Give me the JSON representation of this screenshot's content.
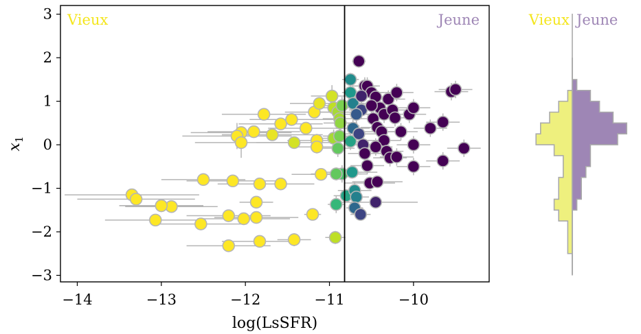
{
  "chart_data": [
    {
      "type": "scatter",
      "xlabel": "log(LsSFR)",
      "ylabel": "x",
      "ylabel_subscript": "1",
      "xlim": [
        -14.2,
        -9.1
      ],
      "ylim": [
        -3.15,
        3.2
      ],
      "xticks": [
        -14,
        -13,
        -12,
        -11,
        -10
      ],
      "xtick_labels": [
        "−14",
        "−13",
        "−12",
        "−11",
        "−10"
      ],
      "yticks": [
        -3,
        -2,
        -1,
        0,
        1,
        2,
        3
      ],
      "ytick_labels": [
        "−3",
        "−2",
        "−1",
        "0",
        "1",
        "2",
        "3"
      ],
      "grid": false,
      "split_line_x": -10.82,
      "colors": {
        "old": "#f4e61e",
        "young": "#9e86b5",
        "split_line": "#000000",
        "errorbar": "#b5b5b5",
        "marker_edge": "#b5b5b5"
      },
      "region_labels": {
        "left": "Vieux",
        "right": "Jeune"
      },
      "colormap": "viridis (yellow = old, purple = young)",
      "points": [
        {
          "x": -13.35,
          "y": -1.15,
          "xerr": 0.8,
          "yerr": 0.12,
          "c": 0.0
        },
        {
          "x": -13.3,
          "y": -1.25,
          "xerr": 0.7,
          "yerr": 0.12,
          "c": 0.0
        },
        {
          "x": -13.0,
          "y": -1.4,
          "xerr": 0.5,
          "yerr": 0.12,
          "c": 0.0
        },
        {
          "x": -12.88,
          "y": -1.42,
          "xerr": 0.55,
          "yerr": 0.12,
          "c": 0.0
        },
        {
          "x": -13.07,
          "y": -1.73,
          "xerr": 0.6,
          "yerr": 0.12,
          "c": 0.0
        },
        {
          "x": -12.53,
          "y": -1.82,
          "xerr": 0.55,
          "yerr": 0.12,
          "c": 0.0
        },
        {
          "x": -12.2,
          "y": -1.63,
          "xerr": 0.5,
          "yerr": 0.12,
          "c": 0.0
        },
        {
          "x": -12.02,
          "y": -1.7,
          "xerr": 0.55,
          "yerr": 0.12,
          "c": 0.0
        },
        {
          "x": -11.87,
          "y": -1.67,
          "xerr": 0.5,
          "yerr": 0.12,
          "c": 0.0
        },
        {
          "x": -12.2,
          "y": -2.32,
          "xerr": 0.5,
          "yerr": 0.12,
          "c": 0.0
        },
        {
          "x": -11.83,
          "y": -2.22,
          "xerr": 0.45,
          "yerr": 0.12,
          "c": 0.0
        },
        {
          "x": -11.42,
          "y": -2.18,
          "xerr": 0.2,
          "yerr": 0.15,
          "c": 0.0
        },
        {
          "x": -12.5,
          "y": -0.8,
          "xerr": 0.5,
          "yerr": 0.12,
          "c": 0.0
        },
        {
          "x": -12.15,
          "y": -0.83,
          "xerr": 0.55,
          "yerr": 0.12,
          "c": 0.0
        },
        {
          "x": -11.83,
          "y": -0.9,
          "xerr": 0.5,
          "yerr": 0.12,
          "c": 0.0
        },
        {
          "x": -11.58,
          "y": -0.9,
          "xerr": 0.4,
          "yerr": 0.12,
          "c": 0.0
        },
        {
          "x": -11.87,
          "y": -1.32,
          "xerr": 0.2,
          "yerr": 0.12,
          "c": 0.0
        },
        {
          "x": -11.2,
          "y": -1.6,
          "xerr": 0.1,
          "yerr": 0.12,
          "c": 0.0
        },
        {
          "x": -11.1,
          "y": -0.68,
          "xerr": 0.35,
          "yerr": 0.12,
          "c": 0.0
        },
        {
          "x": -10.93,
          "y": -2.13,
          "xerr": 0.12,
          "yerr": 0.15,
          "c": 0.15
        },
        {
          "x": -10.92,
          "y": -1.37,
          "xerr": 0.1,
          "yerr": 0.2,
          "c": 0.45
        },
        {
          "x": -10.8,
          "y": -1.17,
          "xerr": 0.15,
          "yerr": 0.15,
          "c": 0.55
        },
        {
          "x": -10.7,
          "y": -1.05,
          "xerr": 0.2,
          "yerr": 0.2,
          "c": 0.65
        },
        {
          "x": -10.68,
          "y": -1.2,
          "xerr": 0.15,
          "yerr": 0.15,
          "c": 0.7
        },
        {
          "x": -10.7,
          "y": -1.45,
          "xerr": 0.1,
          "yerr": 0.15,
          "c": 0.8
        },
        {
          "x": -10.63,
          "y": -1.6,
          "xerr": 0.12,
          "yerr": 0.12,
          "c": 0.9
        },
        {
          "x": -10.45,
          "y": -1.32,
          "xerr": 0.5,
          "yerr": 0.12,
          "c": 0.95
        },
        {
          "x": -10.85,
          "y": -0.67,
          "xerr": 0.3,
          "yerr": 0.2,
          "c": 0.4
        },
        {
          "x": -10.92,
          "y": -0.67,
          "xerr": 0.3,
          "yerr": 0.15,
          "c": 0.35
        },
        {
          "x": -10.73,
          "y": -0.63,
          "xerr": 0.3,
          "yerr": 0.15,
          "c": 0.6
        },
        {
          "x": -10.52,
          "y": -0.88,
          "xerr": 0.3,
          "yerr": 0.15,
          "c": 1.0
        },
        {
          "x": -10.43,
          "y": -0.85,
          "xerr": 0.3,
          "yerr": 0.12,
          "c": 1.0
        },
        {
          "x": -13.0,
          "y": -1.4,
          "xerr": 0.5,
          "yerr": 0.12,
          "c": 0.0
        },
        {
          "x": -11.78,
          "y": 0.7,
          "xerr": 0.5,
          "yerr": 0.12,
          "c": 0.0
        },
        {
          "x": -11.58,
          "y": 0.48,
          "xerr": 0.5,
          "yerr": 0.12,
          "c": 0.0
        },
        {
          "x": -11.45,
          "y": 0.58,
          "xerr": 0.5,
          "yerr": 0.12,
          "c": 0.0
        },
        {
          "x": -11.9,
          "y": 0.3,
          "xerr": 0.55,
          "yerr": 0.12,
          "c": 0.0
        },
        {
          "x": -12.05,
          "y": 0.28,
          "xerr": 0.6,
          "yerr": 0.12,
          "c": 0.0
        },
        {
          "x": -12.1,
          "y": 0.2,
          "xerr": 0.65,
          "yerr": 0.3,
          "c": 0.0
        },
        {
          "x": -12.05,
          "y": 0.05,
          "xerr": 0.55,
          "yerr": 0.35,
          "c": 0.0
        },
        {
          "x": -11.68,
          "y": 0.23,
          "xerr": 0.6,
          "yerr": 0.12,
          "c": 0.05
        },
        {
          "x": -11.42,
          "y": 0.05,
          "xerr": 0.45,
          "yerr": 0.12,
          "c": 0.1
        },
        {
          "x": -11.28,
          "y": 0.38,
          "xerr": 0.45,
          "yerr": 0.12,
          "c": 0.0
        },
        {
          "x": -11.18,
          "y": 0.75,
          "xerr": 0.35,
          "yerr": 0.12,
          "c": 0.0
        },
        {
          "x": -11.12,
          "y": 0.95,
          "xerr": 0.35,
          "yerr": 0.12,
          "c": 0.05
        },
        {
          "x": -11.15,
          "y": 0.1,
          "xerr": 0.35,
          "yerr": 0.15,
          "c": 0.0
        },
        {
          "x": -11.15,
          "y": -0.05,
          "xerr": 0.3,
          "yerr": 0.15,
          "c": 0.0
        },
        {
          "x": -10.97,
          "y": 1.12,
          "xerr": 0.25,
          "yerr": 0.25,
          "c": 0.1
        },
        {
          "x": -10.95,
          "y": 0.85,
          "xerr": 0.25,
          "yerr": 0.2,
          "c": 0.15
        },
        {
          "x": -10.9,
          "y": 0.75,
          "xerr": 0.25,
          "yerr": 0.2,
          "c": 0.2
        },
        {
          "x": -10.85,
          "y": 0.9,
          "xerr": 0.2,
          "yerr": 0.2,
          "c": 0.3
        },
        {
          "x": -10.88,
          "y": 0.6,
          "xerr": 0.2,
          "yerr": 0.2,
          "c": 0.2
        },
        {
          "x": -10.87,
          "y": 0.5,
          "xerr": 0.2,
          "yerr": 0.2,
          "c": 0.25
        },
        {
          "x": -10.95,
          "y": 0.15,
          "xerr": 0.2,
          "yerr": 0.2,
          "c": 0.2
        },
        {
          "x": -10.88,
          "y": 0.2,
          "xerr": 0.2,
          "yerr": 0.2,
          "c": 0.3
        },
        {
          "x": -10.9,
          "y": -0.08,
          "xerr": 0.2,
          "yerr": 0.2,
          "c": 0.35
        },
        {
          "x": -10.75,
          "y": 0.08,
          "xerr": 0.2,
          "yerr": 0.2,
          "c": 0.55
        },
        {
          "x": -10.75,
          "y": 1.5,
          "xerr": 0.1,
          "yerr": 0.15,
          "c": 0.65
        },
        {
          "x": -10.75,
          "y": 1.2,
          "xerr": 0.1,
          "yerr": 0.2,
          "c": 0.6
        },
        {
          "x": -10.72,
          "y": 0.95,
          "xerr": 0.15,
          "yerr": 0.2,
          "c": 0.7
        },
        {
          "x": -10.65,
          "y": 1.92,
          "xerr": 0.08,
          "yerr": 0.15,
          "c": 1.0
        },
        {
          "x": -10.58,
          "y": 1.35,
          "xerr": 0.15,
          "yerr": 0.2,
          "c": 1.0
        },
        {
          "x": -10.55,
          "y": 1.35,
          "xerr": 0.15,
          "yerr": 0.2,
          "c": 1.0
        },
        {
          "x": -10.5,
          "y": 1.2,
          "xerr": 0.15,
          "yerr": 0.2,
          "c": 1.0
        },
        {
          "x": -10.45,
          "y": 1.1,
          "xerr": 0.15,
          "yerr": 0.2,
          "c": 1.0
        },
        {
          "x": -10.62,
          "y": 0.8,
          "xerr": 0.15,
          "yerr": 0.2,
          "c": 0.9
        },
        {
          "x": -10.68,
          "y": 0.7,
          "xerr": 0.2,
          "yerr": 0.2,
          "c": 0.85
        },
        {
          "x": -10.72,
          "y": 0.38,
          "xerr": 0.2,
          "yerr": 0.2,
          "c": 0.8
        },
        {
          "x": -10.65,
          "y": 0.25,
          "xerr": 0.2,
          "yerr": 0.2,
          "c": 0.9
        },
        {
          "x": -10.6,
          "y": 0.0,
          "xerr": 0.2,
          "yerr": 0.2,
          "c": 0.95
        },
        {
          "x": -10.58,
          "y": -0.2,
          "xerr": 0.2,
          "yerr": 0.2,
          "c": 1.0
        },
        {
          "x": -10.55,
          "y": -0.48,
          "xerr": 0.2,
          "yerr": 0.2,
          "c": 1.0
        },
        {
          "x": -10.48,
          "y": 0.6,
          "xerr": 0.2,
          "yerr": 0.2,
          "c": 1.0
        },
        {
          "x": -10.43,
          "y": 0.4,
          "xerr": 0.2,
          "yerr": 0.2,
          "c": 1.0
        },
        {
          "x": -10.4,
          "y": 0.85,
          "xerr": 0.2,
          "yerr": 0.2,
          "c": 1.0
        },
        {
          "x": -10.35,
          "y": 0.7,
          "xerr": 0.2,
          "yerr": 0.2,
          "c": 1.0
        },
        {
          "x": -10.3,
          "y": 1.05,
          "xerr": 0.2,
          "yerr": 0.2,
          "c": 1.0
        },
        {
          "x": -10.25,
          "y": 0.8,
          "xerr": 0.2,
          "yerr": 0.2,
          "c": 1.0
        },
        {
          "x": -10.22,
          "y": 0.62,
          "xerr": 0.2,
          "yerr": 0.2,
          "c": 1.0
        },
        {
          "x": -10.2,
          "y": 1.2,
          "xerr": 0.2,
          "yerr": 0.2,
          "c": 1.0
        },
        {
          "x": -10.38,
          "y": 0.3,
          "xerr": 0.2,
          "yerr": 0.2,
          "c": 1.0
        },
        {
          "x": -10.35,
          "y": 0.1,
          "xerr": 0.2,
          "yerr": 0.2,
          "c": 1.0
        },
        {
          "x": -10.45,
          "y": -0.05,
          "xerr": 0.2,
          "yerr": 0.2,
          "c": 1.0
        },
        {
          "x": -10.32,
          "y": -0.15,
          "xerr": 0.2,
          "yerr": 0.2,
          "c": 1.0
        },
        {
          "x": -10.28,
          "y": -0.3,
          "xerr": 0.2,
          "yerr": 0.2,
          "c": 1.0
        },
        {
          "x": -10.2,
          "y": -0.28,
          "xerr": 0.2,
          "yerr": 0.2,
          "c": 1.0
        },
        {
          "x": -10.15,
          "y": 0.3,
          "xerr": 0.2,
          "yerr": 0.2,
          "c": 1.0
        },
        {
          "x": -10.05,
          "y": 0.7,
          "xerr": 0.2,
          "yerr": 0.2,
          "c": 1.0
        },
        {
          "x": -10.0,
          "y": 0.85,
          "xerr": 0.2,
          "yerr": 0.2,
          "c": 1.0
        },
        {
          "x": -10.0,
          "y": -0.5,
          "xerr": 0.2,
          "yerr": 0.2,
          "c": 1.0
        },
        {
          "x": -10.0,
          "y": 0.0,
          "xerr": 0.2,
          "yerr": 0.2,
          "c": 1.0
        },
        {
          "x": -9.8,
          "y": 0.38,
          "xerr": 0.2,
          "yerr": 0.2,
          "c": 1.0
        },
        {
          "x": -9.65,
          "y": 0.52,
          "xerr": 0.2,
          "yerr": 0.2,
          "c": 1.0
        },
        {
          "x": -9.65,
          "y": -0.37,
          "xerr": 0.2,
          "yerr": 0.2,
          "c": 1.0
        },
        {
          "x": -9.55,
          "y": 1.22,
          "xerr": 0.2,
          "yerr": 0.2,
          "c": 1.0
        },
        {
          "x": -9.5,
          "y": 1.27,
          "xerr": 0.2,
          "yerr": 0.2,
          "c": 1.0
        },
        {
          "x": -9.4,
          "y": -0.08,
          "xerr": 0.2,
          "yerr": 0.2,
          "c": 1.0
        },
        {
          "x": -10.5,
          "y": 0.9,
          "xerr": 0.15,
          "yerr": 0.2,
          "c": 1.0
        },
        {
          "x": -10.62,
          "y": 1.12,
          "xerr": 0.15,
          "yerr": 0.2,
          "c": 0.95
        }
      ]
    },
    {
      "type": "histogram",
      "orientation": "horizontal",
      "bins_y": [
        -3.0,
        -2.75,
        -2.5,
        -2.25,
        -2.0,
        -1.75,
        -1.5,
        -1.25,
        -1.0,
        -0.75,
        -0.5,
        -0.25,
        0.0,
        0.25,
        0.5,
        0.75,
        1.0,
        1.25,
        1.5,
        1.75,
        2.0
      ],
      "series": [
        {
          "name": "Vieux",
          "color": "#f4e61e",
          "side": "left",
          "counts": [
            0,
            0,
            1,
            1,
            1,
            3,
            4,
            3,
            3,
            2,
            2,
            4,
            8,
            7,
            5,
            3,
            1,
            0,
            0,
            0
          ]
        },
        {
          "name": "Jeune",
          "color": "#9e86b5",
          "side": "right",
          "counts": [
            0,
            0,
            0,
            0,
            0,
            0,
            1,
            2,
            2,
            3,
            4,
            4,
            10,
            12,
            9,
            6,
            4,
            1,
            0,
            0
          ]
        }
      ],
      "labels": {
        "left": "Vieux",
        "right": "Jeune"
      }
    }
  ]
}
